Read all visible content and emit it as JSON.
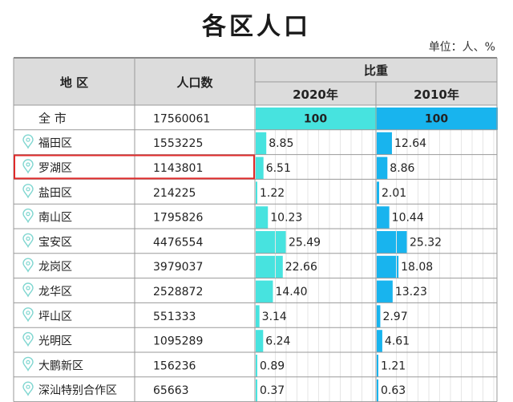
{
  "title": "各区人口",
  "unit_note": "单位：人、%",
  "header": {
    "district": "地  区",
    "population": "人口数",
    "weight": "比重",
    "year_2020": "2020年",
    "year_2010": "2010年"
  },
  "colors": {
    "bar_2020": "#47e3df",
    "bar_2010": "#18b4ee",
    "header_bg": "#dcdcdc",
    "highlight_border": "#e02a2a",
    "pin_icon": "#7fd6d0"
  },
  "highlight_row": "罗湖区",
  "chart_data": {
    "type": "table",
    "columns": [
      "地  区",
      "人口数",
      "2020年",
      "2010年"
    ],
    "rows": [
      {
        "district": "全  市",
        "population": "17560061",
        "share_2020": "100",
        "share_2010": "100"
      },
      {
        "district": "福田区",
        "population": "1553225",
        "share_2020": "8.85",
        "share_2010": "12.64"
      },
      {
        "district": "罗湖区",
        "population": "1143801",
        "share_2020": "6.51",
        "share_2010": "8.86"
      },
      {
        "district": "盐田区",
        "population": "214225",
        "share_2020": "1.22",
        "share_2010": "2.01"
      },
      {
        "district": "南山区",
        "population": "1795826",
        "share_2020": "10.23",
        "share_2010": "10.44"
      },
      {
        "district": "宝安区",
        "population": "4476554",
        "share_2020": "25.49",
        "share_2010": "25.32"
      },
      {
        "district": "龙岗区",
        "population": "3979037",
        "share_2020": "22.66",
        "share_2010": "18.08"
      },
      {
        "district": "龙华区",
        "population": "2528872",
        "share_2020": "14.40",
        "share_2010": "13.23"
      },
      {
        "district": "坪山区",
        "population": "551333",
        "share_2020": "3.14",
        "share_2010": "2.97"
      },
      {
        "district": "光明区",
        "population": "1095289",
        "share_2020": "6.24",
        "share_2010": "4.61"
      },
      {
        "district": "大鹏新区",
        "population": "156236",
        "share_2020": "0.89",
        "share_2010": "1.21"
      },
      {
        "district": "深汕特别合作区",
        "population": "65663",
        "share_2020": "0.37",
        "share_2010": "0.63"
      }
    ]
  }
}
